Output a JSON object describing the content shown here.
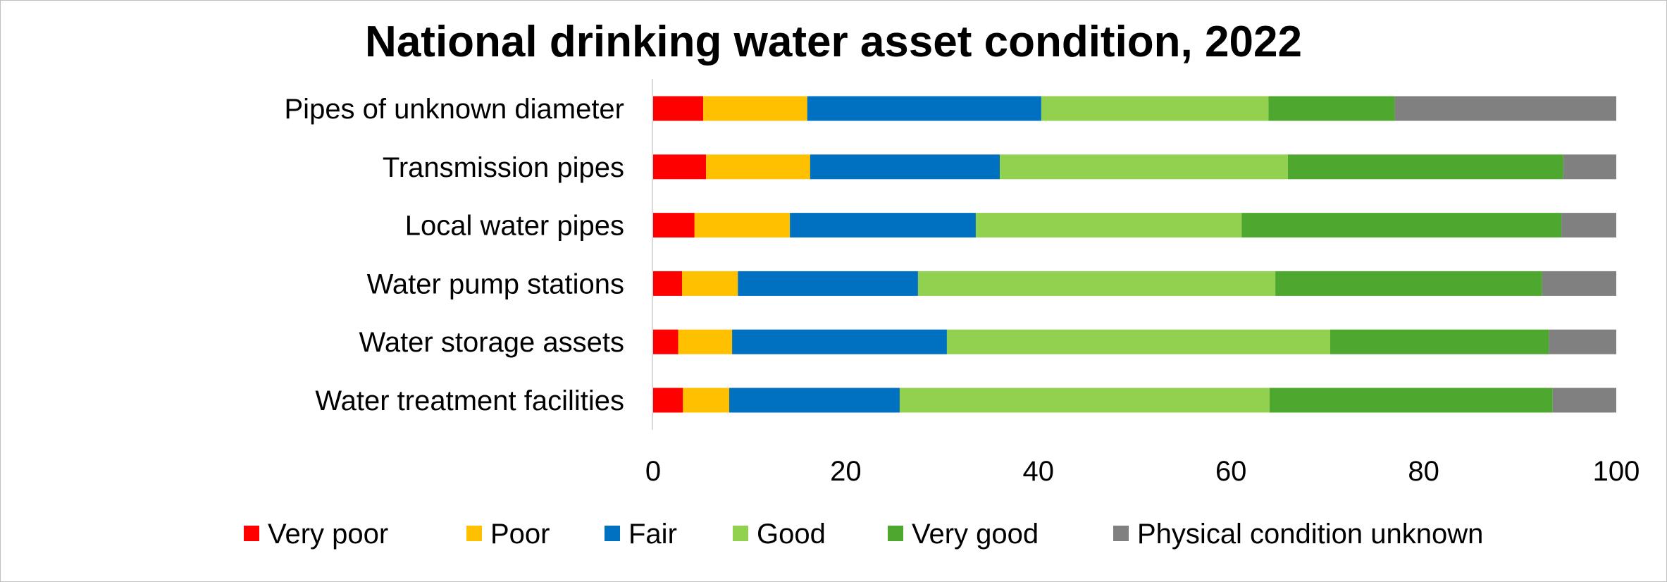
{
  "chart_data": {
    "type": "bar",
    "orientation": "horizontal",
    "stacked": true,
    "title": "National drinking water asset condition, 2022",
    "xlabel": "",
    "ylabel": "",
    "xlim": [
      0,
      100
    ],
    "x_ticks": [
      "0",
      "20",
      "40",
      "60",
      "80",
      "100"
    ],
    "grid": false,
    "legend_position": "bottom",
    "categories": [
      "Pipes of unknown diameter",
      "Transmission pipes",
      "Local water pipes",
      "Water pump stations",
      "Water storage assets",
      "Water treatment facilities"
    ],
    "series": [
      {
        "name": "Very poor",
        "color": "#ff0000",
        "values": [
          5.2,
          5.5,
          4.3,
          3.0,
          2.6,
          3.1
        ]
      },
      {
        "name": "Poor",
        "color": "#ffc000",
        "values": [
          10.8,
          10.8,
          9.9,
          5.8,
          5.6,
          4.8
        ]
      },
      {
        "name": "Fair",
        "color": "#0070c0",
        "values": [
          24.3,
          19.7,
          19.3,
          18.7,
          22.3,
          17.7
        ]
      },
      {
        "name": "Good",
        "color": "#92d050",
        "values": [
          23.6,
          29.9,
          27.6,
          37.1,
          39.8,
          38.4
        ]
      },
      {
        "name": "Very good",
        "color": "#4ea72e",
        "values": [
          13.1,
          28.6,
          33.2,
          27.7,
          22.7,
          29.4
        ]
      },
      {
        "name": "Physical condition unknown",
        "color": "#808080",
        "values": [
          23.0,
          5.5,
          5.7,
          7.7,
          7.0,
          6.6
        ]
      }
    ]
  }
}
